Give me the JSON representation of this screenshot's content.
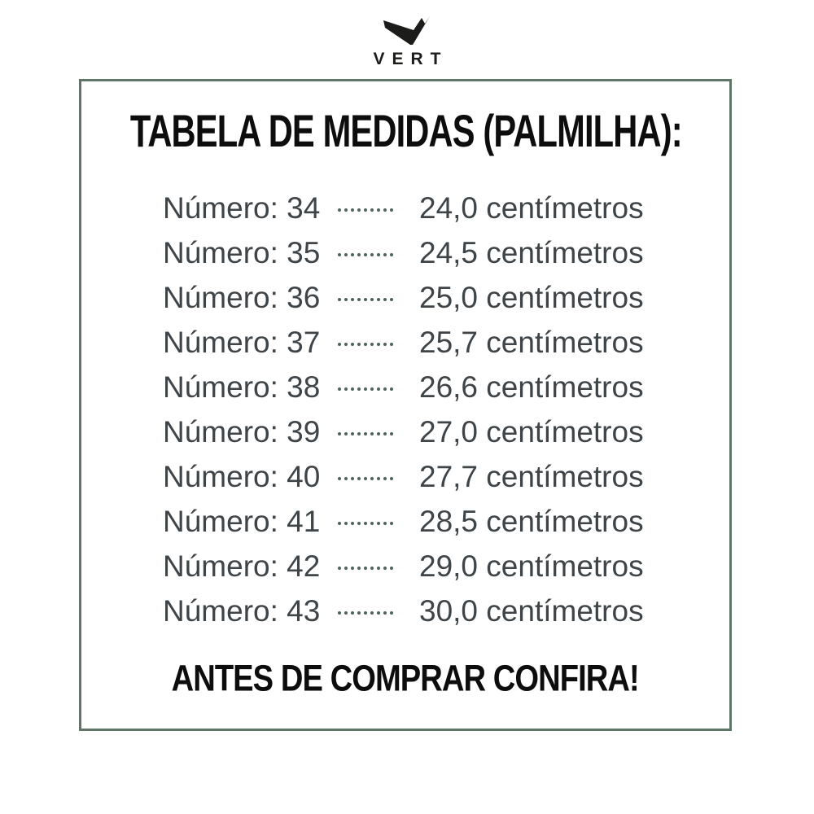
{
  "brand": {
    "name": "VERT",
    "logo_icon": "vert-v-checkmark-logo"
  },
  "card": {
    "title": "TABELA DE MEDIDAS (PALMILHA):",
    "dots_per_row": 9,
    "row_label_prefix": "Número:",
    "unit": "centímetros",
    "rows": [
      {
        "label": "Número: 34",
        "size": 34,
        "cm": "24,0",
        "value": "24,0 centímetros"
      },
      {
        "label": "Número: 35",
        "size": 35,
        "cm": "24,5",
        "value": "24,5 centímetros"
      },
      {
        "label": "Número: 36",
        "size": 36,
        "cm": "25,0",
        "value": "25,0 centímetros"
      },
      {
        "label": "Número: 37",
        "size": 37,
        "cm": "25,7",
        "value": "25,7 centímetros"
      },
      {
        "label": "Número: 38",
        "size": 38,
        "cm": "26,6",
        "value": "26,6 centímetros"
      },
      {
        "label": "Número: 39",
        "size": 39,
        "cm": "27,0",
        "value": "27,0 centímetros"
      },
      {
        "label": "Número: 40",
        "size": 40,
        "cm": "27,7",
        "value": "27,7 centímetros"
      },
      {
        "label": "Número: 41",
        "size": 41,
        "cm": "28,5",
        "value": "28,5 centímetros"
      },
      {
        "label": "Número: 42",
        "size": 42,
        "cm": "29,0",
        "value": "29,0 centímetros"
      },
      {
        "label": "Número: 43",
        "size": 43,
        "cm": "30,0",
        "value": "30,0 centímetros"
      }
    ],
    "footer": "ANTES DE COMPRAR CONFIRA!"
  },
  "colors": {
    "border": "#5f7568",
    "row_text": "#3e4447",
    "dots": "#50635a",
    "heading_text": "#0d0d0d",
    "logo": "#1c1c1a",
    "background": "#ffffff"
  }
}
